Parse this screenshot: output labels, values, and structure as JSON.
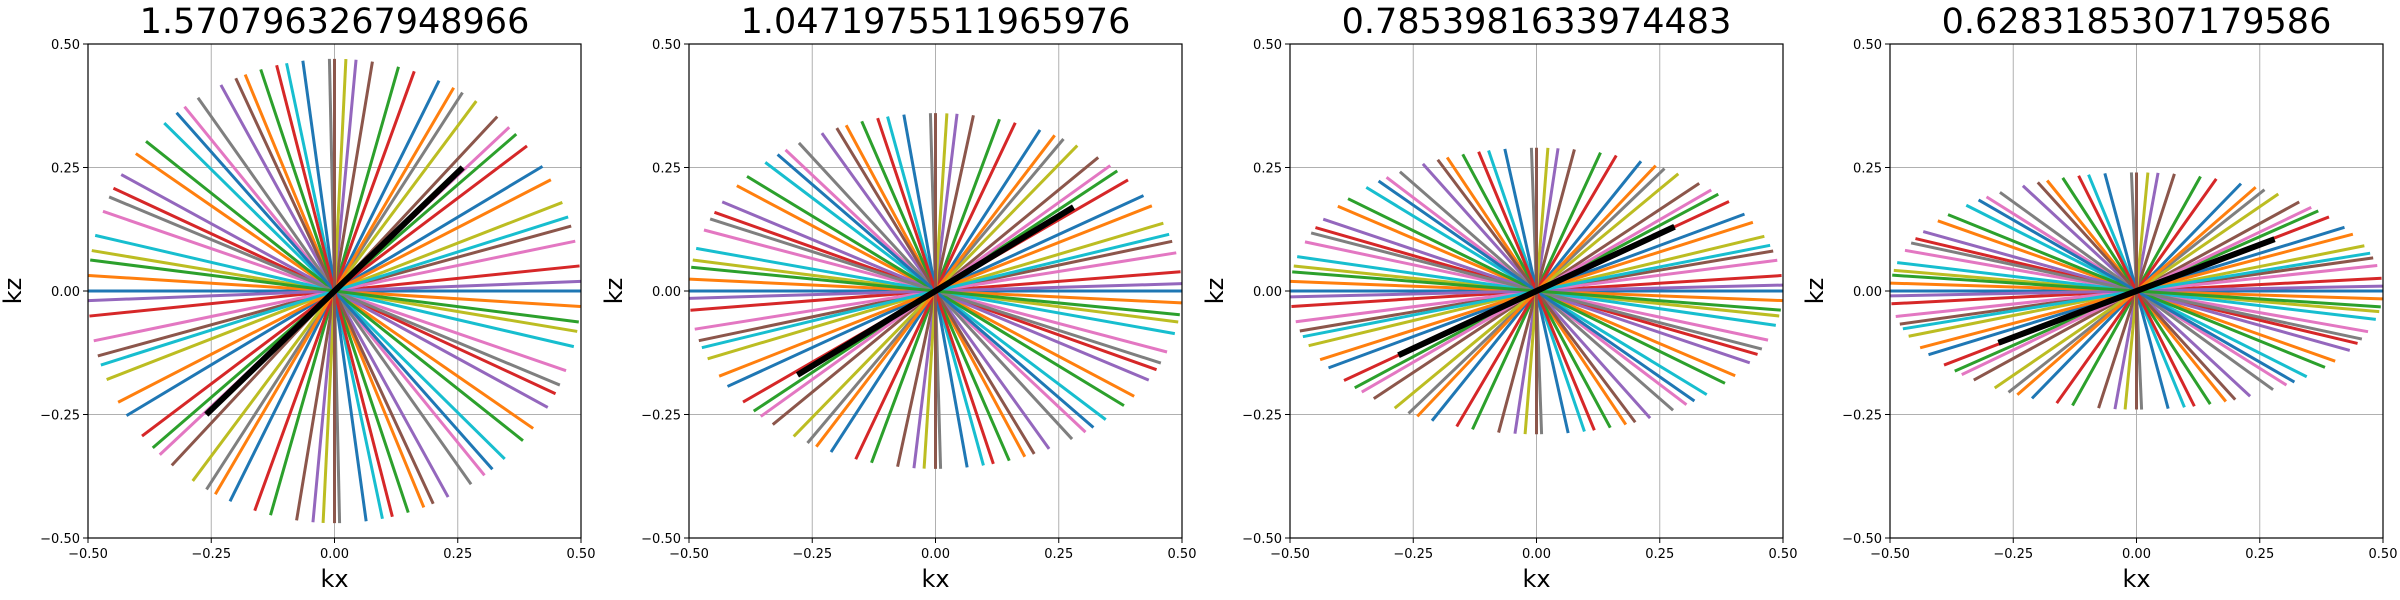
{
  "chart_data": [
    {
      "type": "line",
      "title": "1.5707963267948966",
      "xlabel": "kx",
      "ylabel": "kz",
      "xlim": [
        -0.5,
        0.5
      ],
      "ylim": [
        -0.5,
        0.5
      ],
      "xticks": [
        "−0.50",
        "−0.25",
        "0.00",
        "0.25",
        "0.50"
      ],
      "yticks": [
        "−0.50",
        "−0.25",
        "0.00",
        "0.25",
        "0.50"
      ],
      "grid": true,
      "kz_max": 0.47,
      "kz_cross_center": 0.47,
      "highlight_endpoint": [
        0.26,
        0.25
      ]
    },
    {
      "type": "line",
      "title": "1.0471975511965976",
      "xlabel": "kx",
      "ylabel": "kz",
      "xlim": [
        -0.5,
        0.5
      ],
      "ylim": [
        -0.5,
        0.5
      ],
      "xticks": [
        "−0.50",
        "−0.25",
        "0.00",
        "0.25",
        "0.50"
      ],
      "yticks": [
        "−0.50",
        "−0.25",
        "0.00",
        "0.25",
        "0.50"
      ],
      "grid": true,
      "kz_max": 0.36,
      "kz_cross_center": 0.36,
      "highlight_endpoint": [
        0.28,
        0.17
      ]
    },
    {
      "type": "line",
      "title": "0.7853981633974483",
      "xlabel": "kx",
      "ylabel": "kz",
      "xlim": [
        -0.5,
        0.5
      ],
      "ylim": [
        -0.5,
        0.5
      ],
      "xticks": [
        "−0.50",
        "−0.25",
        "0.00",
        "0.25",
        "0.50"
      ],
      "yticks": [
        "−0.50",
        "−0.25",
        "0.00",
        "0.25",
        "0.50"
      ],
      "grid": true,
      "kz_max": 0.29,
      "kz_cross_center": 0.29,
      "highlight_endpoint": [
        0.28,
        0.13
      ]
    },
    {
      "type": "line",
      "title": "0.6283185307179586",
      "xlabel": "kx",
      "ylabel": "kz",
      "xlim": [
        -0.5,
        0.5
      ],
      "ylim": [
        -0.5,
        0.5
      ],
      "xticks": [
        "−0.50",
        "−0.25",
        "0.00",
        "0.25",
        "0.50"
      ],
      "yticks": [
        "−0.50",
        "−0.25",
        "0.00",
        "0.25",
        "0.50"
      ],
      "grid": true,
      "kz_max": 0.24,
      "kz_cross_center": 0.24,
      "highlight_endpoint": [
        0.28,
        0.105
      ]
    }
  ],
  "spoke_colors": [
    "#1f77b4",
    "#ff7f0e",
    "#2ca02c",
    "#d62728",
    "#9467bd",
    "#8c564b",
    "#e377c2",
    "#7f7f7f",
    "#bcbd22",
    "#17becf"
  ],
  "highlight_color": "#000000",
  "grid_color": "#b0b0b0"
}
